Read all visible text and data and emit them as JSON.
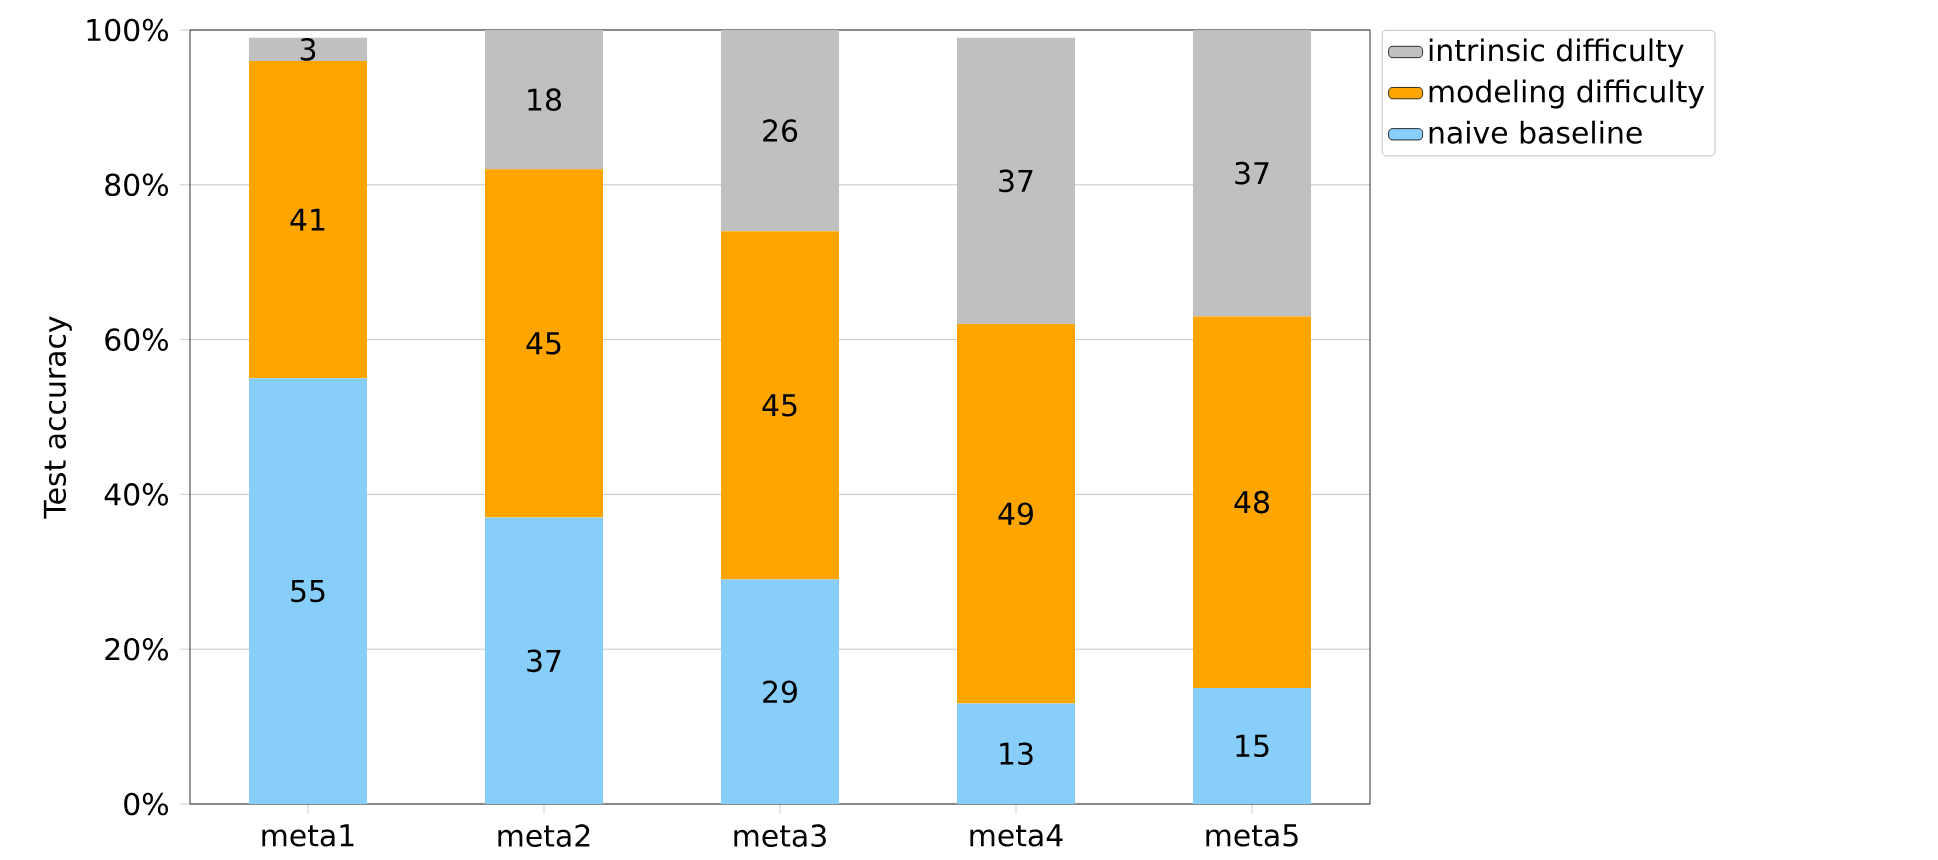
{
  "chart_data": {
    "type": "bar",
    "stacked": true,
    "ylabel": "Test accuracy",
    "categories": [
      "meta1",
      "meta2",
      "meta3",
      "meta4",
      "meta5"
    ],
    "series": [
      {
        "name": "naive baseline",
        "color": "#87cefa",
        "values": [
          55,
          37,
          29,
          13,
          15
        ]
      },
      {
        "name": "modeling difficulty",
        "color": "#ffa500",
        "values": [
          41,
          45,
          45,
          49,
          48
        ]
      },
      {
        "name": "intrinsic difficulty",
        "color": "#c0c0c0",
        "values": [
          3,
          18,
          26,
          37,
          37
        ]
      }
    ],
    "ylim": [
      0,
      100
    ],
    "yticks": [
      {
        "value": 0,
        "label": "0%"
      },
      {
        "value": 20,
        "label": "20%"
      },
      {
        "value": 40,
        "label": "40%"
      },
      {
        "value": 60,
        "label": "60%"
      },
      {
        "value": 80,
        "label": "80%"
      },
      {
        "value": 100,
        "label": "100%"
      }
    ],
    "grid": "y",
    "legend": "top right",
    "data_labels": true
  }
}
